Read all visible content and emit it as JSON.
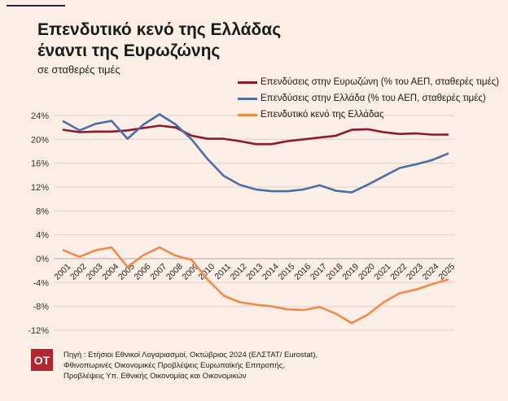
{
  "header": {
    "title_line1": "Επενδυτικό κενό της Ελλάδας",
    "title_line2": "έναντι της Ευρωζώνης",
    "subtitle": "σε σταθερές τιμές"
  },
  "chart_data": {
    "type": "line",
    "title": "Επενδυτικό κενό της Ελλάδας έναντι της Ευρωζώνης",
    "subtitle": "σε σταθερές τιμές",
    "x": [
      "2001",
      "2002",
      "2003",
      "2004",
      "2005",
      "2006",
      "2007",
      "2008",
      "2009",
      "2010",
      "2011",
      "2012",
      "2013",
      "2014",
      "2015",
      "2016",
      "2017",
      "2018",
      "2019",
      "2020",
      "2021",
      "2022",
      "2023",
      "2024",
      "2025"
    ],
    "ylim": [
      -12,
      24
    ],
    "yticks": [
      "24%",
      "20%",
      "16%",
      "12%",
      "8%",
      "4%",
      "0%",
      "-4%",
      "-8%",
      "-12%"
    ],
    "ytick_values": [
      24,
      20,
      16,
      12,
      8,
      4,
      0,
      -4,
      -8,
      -12
    ],
    "grid": true,
    "legend_position": "top-right",
    "series": [
      {
        "name": "Επενδύσεις στην Ευρωζώνη (% του ΑΕΠ, σταθερές τιμές)",
        "color": "#8b1a2b",
        "values": [
          21.6,
          21.2,
          21.3,
          21.3,
          21.5,
          21.9,
          22.3,
          22.0,
          20.6,
          20.1,
          20.1,
          19.7,
          19.2,
          19.2,
          19.7,
          20.0,
          20.3,
          20.6,
          21.6,
          21.7,
          21.2,
          20.9,
          21.0,
          20.8,
          20.8
        ]
      },
      {
        "name": "Επενδύσεις στην Ελλάδα (% του ΑΕΠ, σταθερές τιμές)",
        "color": "#4a6fa5",
        "values": [
          23.0,
          21.5,
          22.6,
          23.1,
          20.1,
          22.5,
          24.2,
          22.5,
          20.0,
          16.7,
          13.9,
          12.4,
          11.6,
          11.3,
          11.3,
          11.6,
          12.3,
          11.4,
          11.1,
          12.4,
          13.8,
          15.2,
          15.8,
          16.5,
          17.6
        ]
      },
      {
        "name": "Επενδυτικό κενό της Ελλάδας",
        "color": "#ee8a4a",
        "values": [
          1.4,
          0.3,
          1.4,
          1.9,
          -1.4,
          0.6,
          1.9,
          0.5,
          -0.2,
          -3.5,
          -6.2,
          -7.3,
          -7.7,
          -8.0,
          -8.5,
          -8.6,
          -8.1,
          -9.2,
          -10.8,
          -9.4,
          -7.3,
          -5.8,
          -5.2,
          -4.3,
          -3.5
        ]
      }
    ]
  },
  "footer": {
    "logo": "ΟΤ",
    "source_line1": "Πηγή : Ετήσιοι Εθνικοί Λογαριασμοί, Οκτώβριος 2024 (ΕΛΣΤΑΤ/ Eurostat),",
    "source_line2": "Φθινοπωρινές Οικονομικές Προβλέψεις Ευρωπαϊκής Επιτροπής,",
    "source_line3": "Προβλέψεις Υπ. Εθνικής Οικονομίας και Οικονομικών"
  }
}
